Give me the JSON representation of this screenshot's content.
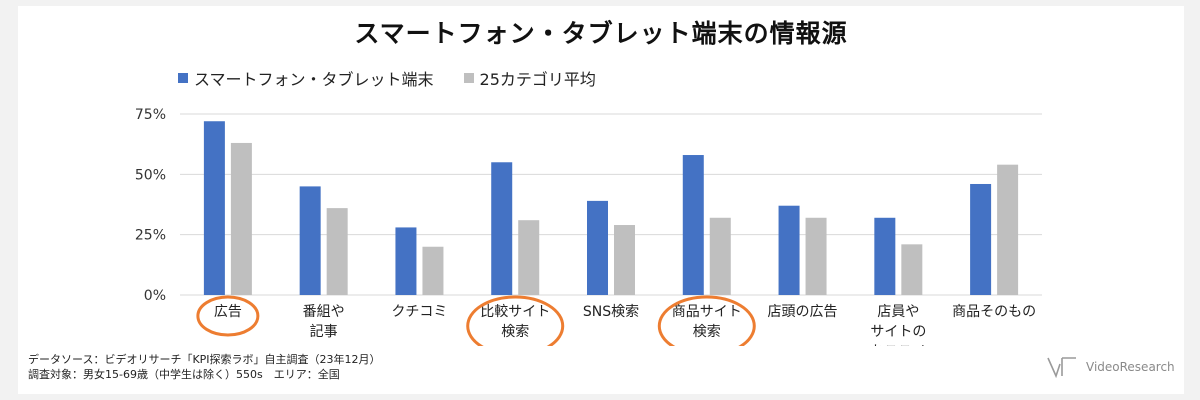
{
  "colors": {
    "series1": "#4472c4",
    "series2": "#bfbfbf",
    "highlight": "#ed7d31",
    "gridline": "#d9d9d9"
  },
  "chart_data": {
    "type": "bar",
    "title": "スマートフォン・タブレット端末の情報源",
    "categories": [
      [
        "広告"
      ],
      [
        "番組や",
        "記事"
      ],
      [
        "クチコミ"
      ],
      [
        "比較サイト",
        "検索"
      ],
      [
        "SNS検索"
      ],
      [
        "商品サイト",
        "検索"
      ],
      [
        "店頭の広告"
      ],
      [
        "店員や",
        "サイトの",
        "おススメ"
      ],
      [
        "商品そのもの"
      ]
    ],
    "series": [
      {
        "name": "スマートフォン・タブレット端末",
        "values": [
          72,
          45,
          28,
          55,
          39,
          58,
          37,
          32,
          46
        ]
      },
      {
        "name": "25カテゴリ平均",
        "values": [
          63,
          36,
          20,
          31,
          29,
          32,
          32,
          21,
          54
        ]
      }
    ],
    "highlighted_categories": [
      0,
      3,
      5
    ],
    "ylim": [
      0,
      75
    ],
    "yticks": [
      0,
      25,
      50,
      75
    ],
    "ytick_labels": [
      "0%",
      "25%",
      "50%",
      "75%"
    ],
    "grid": true,
    "legend_position": "top-left"
  },
  "footer": {
    "line1": "データソース：ビデオリサーチ「KPI探索ラボ」自主調査（23年12月）",
    "line2": "調査対象：男女15-69歳（中学生は除く）550s　エリア：全国"
  },
  "brand": {
    "logo_text": "VideoResearch",
    "icon": "videoresearch-logo-icon"
  }
}
